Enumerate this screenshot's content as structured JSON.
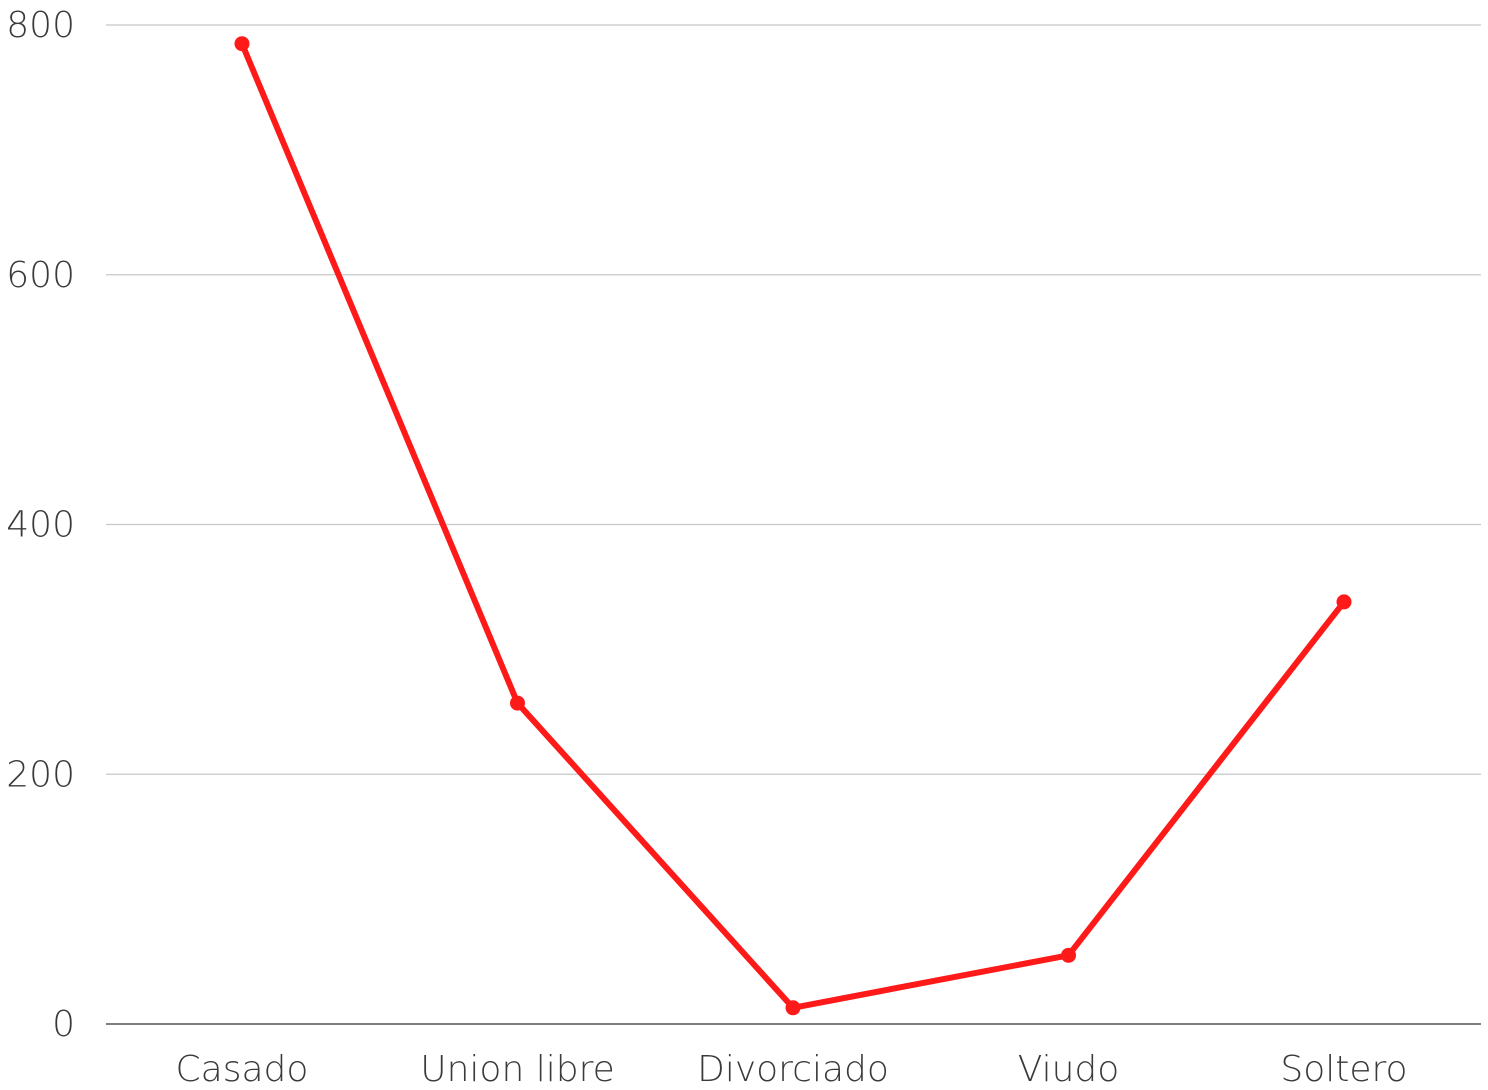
{
  "chart_data": {
    "type": "line",
    "title": "",
    "xlabel": "",
    "ylabel": "",
    "categories": [
      "Casado",
      "Union libre",
      "Divorciado",
      "Viudo",
      "Soltero"
    ],
    "series": [
      {
        "values": [
          785,
          257,
          13,
          55,
          338
        ],
        "color": "#ff1a1a"
      }
    ],
    "ylim": [
      0,
      800
    ],
    "yticks": [
      0,
      200,
      400,
      600,
      800
    ],
    "ytick_labels": [
      "0",
      "200",
      "400",
      "600",
      "800"
    ],
    "grid": true,
    "legend": "none",
    "colors": {
      "line": "#ff1a1a",
      "grid": "#c8c8c8",
      "axis": "#555555",
      "text": "#3a3a3a"
    }
  }
}
